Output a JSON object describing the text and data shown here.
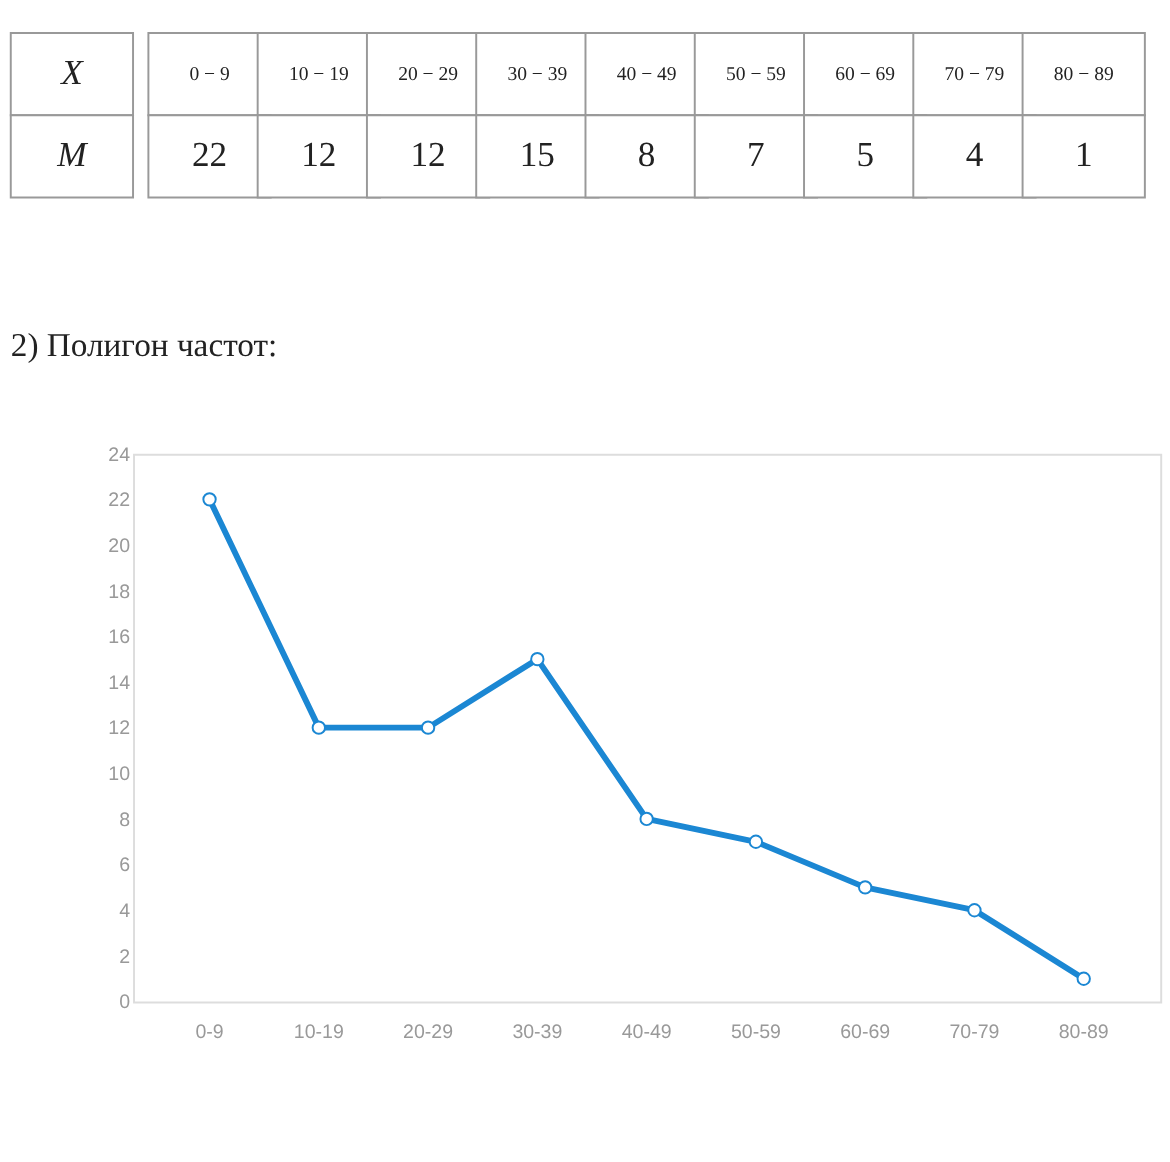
{
  "chart_data": {
    "type": "line",
    "title": "2) Полигон частот:",
    "categories": [
      "0-9",
      "10-19",
      "20-29",
      "30-39",
      "40-49",
      "50-59",
      "60-69",
      "70-79",
      "80-89"
    ],
    "series": [
      {
        "color": "#1b87d3",
        "values": [
          22,
          12,
          12,
          15,
          8,
          7,
          5,
          4,
          1
        ]
      }
    ],
    "ylim": [
      0,
      24
    ],
    "yticks": [
      0,
      2,
      4,
      6,
      8,
      10,
      12,
      14,
      16,
      18,
      20,
      22,
      24
    ],
    "grid": false,
    "marker": "circle",
    "line_style": "solid",
    "data_labels": true,
    "annotations": [
      "X",
      "M",
      "0 − 9",
      "10 − 19",
      "20 − 29",
      "30 − 39",
      "40 − 49",
      "50 − 59",
      "60 − 69",
      "70 − 79",
      "80 − 89"
    ]
  }
}
